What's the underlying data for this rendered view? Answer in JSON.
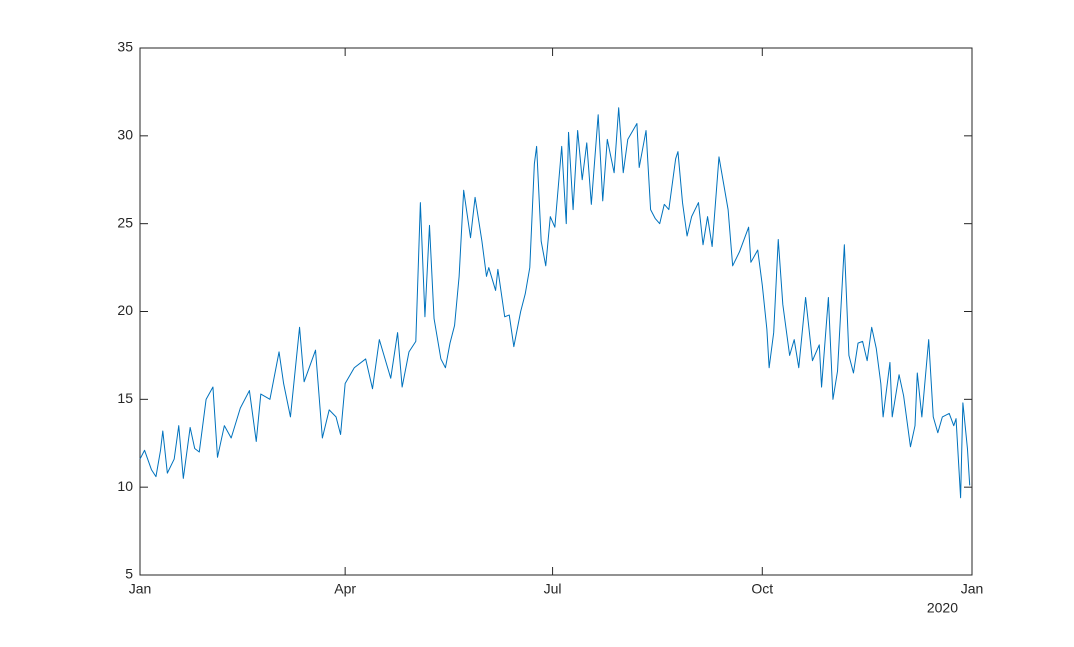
{
  "chart_data": {
    "type": "line",
    "x": [
      0,
      2,
      5,
      7,
      9,
      10,
      12,
      15,
      17,
      19,
      22,
      24,
      26,
      29,
      32,
      34,
      37,
      40,
      44,
      48,
      51,
      53,
      57,
      61,
      63,
      66,
      70,
      72,
      77,
      80,
      83,
      86,
      88,
      90,
      94,
      99,
      102,
      105,
      110,
      113,
      115,
      118,
      121,
      123,
      125,
      127,
      129,
      132,
      134,
      136,
      138,
      140,
      142,
      145,
      147,
      150,
      152,
      153,
      156,
      157,
      160,
      162,
      164,
      167,
      169,
      171,
      173,
      174,
      176,
      178,
      180,
      182,
      185,
      187,
      188,
      190,
      192,
      194,
      196,
      198,
      201,
      203,
      205,
      208,
      210,
      212,
      214,
      218,
      219,
      222,
      224,
      226,
      228,
      230,
      232,
      235,
      236,
      238,
      240,
      242,
      245,
      247,
      249,
      251,
      254,
      256,
      258,
      260,
      263,
      267,
      268,
      271,
      273,
      275,
      276,
      278,
      280,
      282,
      285,
      287,
      289,
      292,
      295,
      298,
      299,
      302,
      304,
      306,
      309,
      311,
      313,
      315,
      317,
      319,
      321,
      323,
      325,
      326,
      329,
      330,
      333,
      335,
      338,
      340,
      341,
      343,
      346,
      348,
      350,
      352,
      355,
      357,
      358,
      360,
      361,
      363,
      364
    ],
    "series": [
      {
        "color": "#0072bd",
        "values": [
          11.6,
          12.1,
          11.0,
          10.6,
          12.1,
          13.2,
          10.8,
          11.6,
          13.5,
          10.5,
          13.4,
          12.2,
          12.0,
          15.0,
          15.7,
          11.7,
          13.5,
          12.8,
          14.5,
          15.5,
          12.6,
          15.3,
          15.0,
          17.7,
          15.9,
          14.0,
          19.1,
          16.0,
          17.8,
          12.8,
          14.4,
          14.0,
          13.0,
          15.9,
          16.8,
          17.3,
          15.6,
          18.4,
          16.2,
          18.8,
          15.7,
          17.7,
          18.3,
          26.2,
          19.7,
          24.9,
          19.6,
          17.3,
          16.8,
          18.2,
          19.2,
          22.0,
          26.9,
          24.2,
          26.5,
          24.0,
          22.0,
          22.5,
          21.2,
          22.4,
          19.7,
          19.8,
          18.0,
          20.0,
          21.0,
          22.5,
          28.4,
          29.4,
          24.0,
          22.6,
          25.4,
          24.8,
          29.4,
          25.0,
          30.2,
          25.8,
          30.3,
          27.5,
          29.6,
          26.1,
          31.2,
          26.3,
          29.8,
          27.9,
          31.6,
          27.9,
          29.8,
          30.7,
          28.2,
          30.3,
          25.8,
          25.3,
          25.0,
          26.1,
          25.8,
          28.7,
          29.1,
          26.2,
          24.3,
          25.4,
          26.2,
          23.8,
          25.4,
          23.7,
          28.8,
          27.3,
          25.8,
          22.6,
          23.4,
          24.8,
          22.8,
          23.5,
          21.5,
          19.0,
          16.8,
          18.8,
          24.1,
          20.4,
          17.5,
          18.4,
          16.8,
          20.8,
          17.2,
          18.1,
          15.7,
          20.8,
          15.0,
          16.6,
          23.8,
          17.5,
          16.5,
          18.2,
          18.3,
          17.2,
          19.1,
          17.9,
          15.9,
          14.0,
          17.1,
          14.0,
          16.4,
          15.2,
          12.3,
          13.5,
          16.5,
          14.0,
          18.4,
          14.0,
          13.1,
          14.0,
          14.2,
          13.5,
          13.9,
          9.4,
          14.8,
          12.2,
          10.1
        ]
      }
    ],
    "xlim": [
      0,
      365
    ],
    "xticks": [
      {
        "value": 0,
        "label": "Jan"
      },
      {
        "value": 90,
        "label": "Apr"
      },
      {
        "value": 181,
        "label": "Jul"
      },
      {
        "value": 273,
        "label": "Oct"
      },
      {
        "value": 365,
        "label": "Jan"
      }
    ],
    "x_secondary_label": "2020",
    "ylim": [
      5,
      35
    ],
    "yticks": [
      5,
      10,
      15,
      20,
      25,
      30,
      35
    ],
    "grid": false
  }
}
